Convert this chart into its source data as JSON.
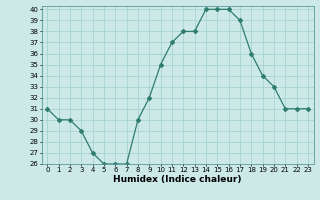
{
  "x": [
    0,
    1,
    2,
    3,
    4,
    5,
    6,
    7,
    8,
    9,
    10,
    11,
    12,
    13,
    14,
    15,
    16,
    17,
    18,
    19,
    20,
    21,
    22,
    23
  ],
  "y": [
    31,
    30,
    30,
    29,
    27,
    26,
    26,
    26,
    30,
    32,
    35,
    37,
    38,
    38,
    40,
    40,
    40,
    39,
    36,
    34,
    33,
    31,
    31,
    31
  ],
  "line_color": "#2e7d6e",
  "marker": "D",
  "marker_size": 2.0,
  "bg_color": "#cce9e8",
  "grid_color": "#9fcfcc",
  "xlabel": "Humidex (Indice chaleur)",
  "ylim": [
    26,
    40
  ],
  "xlim": [
    -0.5,
    23.5
  ],
  "yticks": [
    26,
    27,
    28,
    29,
    30,
    31,
    32,
    33,
    34,
    35,
    36,
    37,
    38,
    39,
    40
  ],
  "xticks": [
    0,
    1,
    2,
    3,
    4,
    5,
    6,
    7,
    8,
    9,
    10,
    11,
    12,
    13,
    14,
    15,
    16,
    17,
    18,
    19,
    20,
    21,
    22,
    23
  ],
  "tick_fontsize": 5.0,
  "label_fontsize": 6.5,
  "linewidth": 0.9
}
